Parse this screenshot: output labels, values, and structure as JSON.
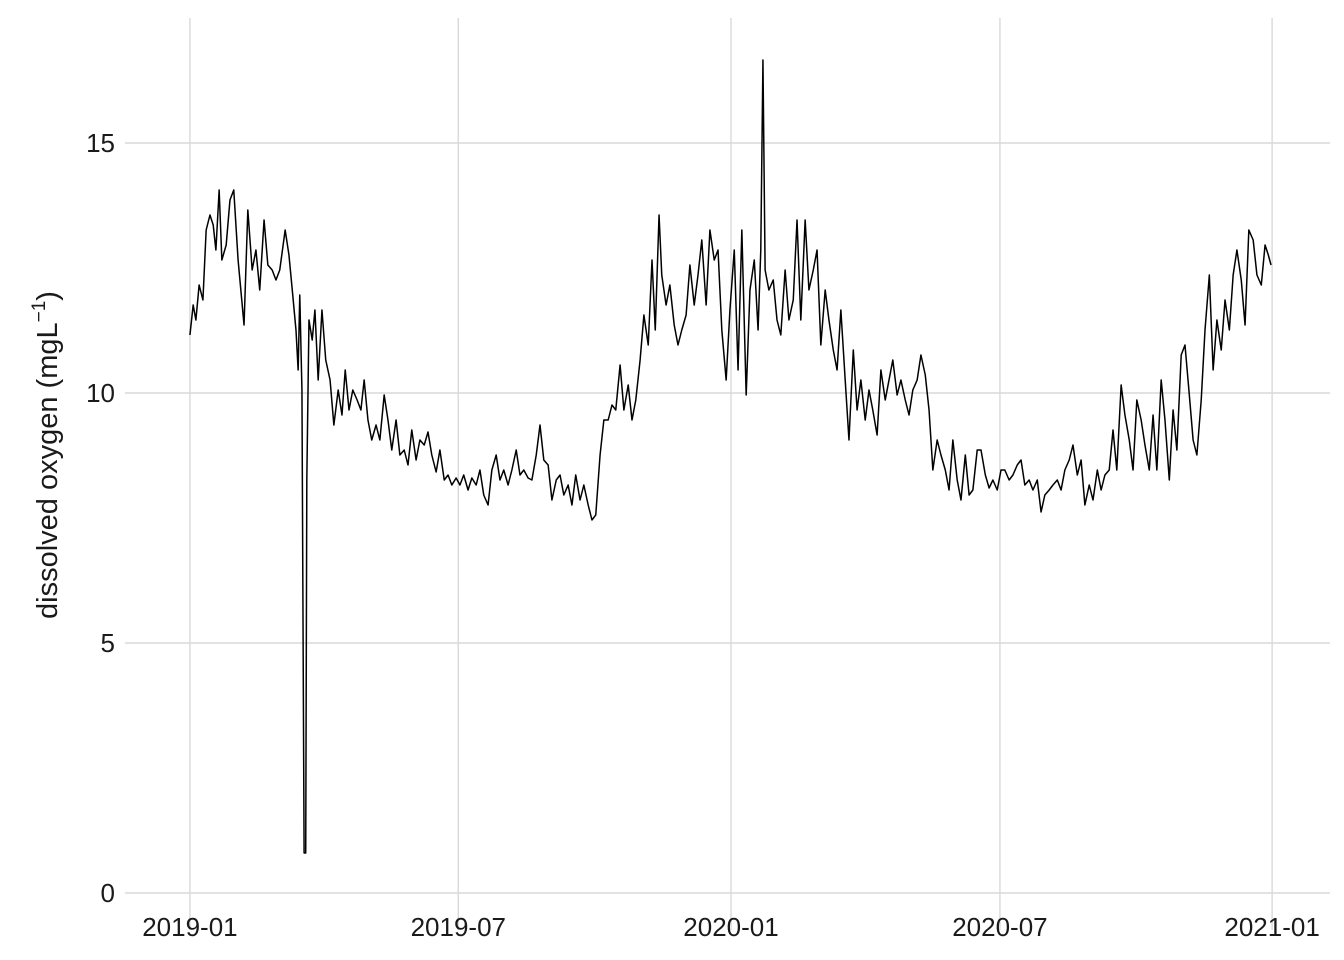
{
  "chart_data": {
    "type": "line",
    "ylabel": {
      "text": "dissolved oxygen (mgL",
      "superscript": "−1",
      "close": ")"
    },
    "xlim": [
      2018.88,
      2021.107
    ],
    "ylim": [
      -0.74,
      17.5
    ],
    "xticks": [
      {
        "value": 2019,
        "label": "2019-01"
      },
      {
        "value": 2019.496,
        "label": "2019-07"
      },
      {
        "value": 2020,
        "label": "2020-01"
      },
      {
        "value": 2020.497,
        "label": "2020-07"
      },
      {
        "value": 2021,
        "label": "2021-01"
      }
    ],
    "yticks": [
      0,
      5,
      10,
      15
    ],
    "grid": true,
    "color": "#000000",
    "x": [
      2019.0,
      2019.006,
      2019.011,
      2019.017,
      2019.024,
      2019.03,
      2019.037,
      2019.043,
      2019.048,
      2019.054,
      2019.059,
      2019.067,
      2019.074,
      2019.081,
      2019.089,
      2019.1,
      2019.107,
      2019.115,
      2019.122,
      2019.129,
      2019.137,
      2019.144,
      2019.152,
      2019.159,
      2019.166,
      2019.176,
      2019.183,
      2019.19,
      2019.196,
      2019.2,
      2019.203,
      2019.207,
      2019.211,
      2019.214,
      2019.216,
      2019.22,
      2019.226,
      2019.231,
      2019.237,
      2019.244,
      2019.251,
      2019.259,
      2019.266,
      2019.274,
      2019.281,
      2019.287,
      2019.294,
      2019.301,
      2019.309,
      2019.316,
      2019.322,
      2019.329,
      2019.336,
      2019.344,
      2019.351,
      2019.359,
      2019.366,
      2019.373,
      2019.381,
      2019.388,
      2019.396,
      2019.403,
      2019.41,
      2019.418,
      2019.425,
      2019.433,
      2019.44,
      2019.447,
      2019.455,
      2019.462,
      2019.47,
      2019.477,
      2019.484,
      2019.492,
      2019.499,
      2019.506,
      2019.514,
      2019.521,
      2019.529,
      2019.536,
      2019.543,
      2019.551,
      2019.558,
      2019.566,
      2019.573,
      2019.58,
      2019.588,
      2019.595,
      2019.603,
      2019.61,
      2019.617,
      2019.625,
      2019.632,
      2019.64,
      2019.647,
      2019.654,
      2019.662,
      2019.669,
      2019.677,
      2019.684,
      2019.691,
      2019.699,
      2019.706,
      2019.713,
      2019.721,
      2019.728,
      2019.736,
      2019.743,
      2019.75,
      2019.758,
      2019.765,
      2019.773,
      2019.78,
      2019.787,
      2019.795,
      2019.802,
      2019.81,
      2019.817,
      2019.824,
      2019.832,
      2019.839,
      2019.847,
      2019.854,
      2019.86,
      2019.867,
      2019.872,
      2019.88,
      2019.887,
      2019.895,
      2019.902,
      2019.909,
      2019.917,
      2019.924,
      2019.932,
      2019.939,
      2019.946,
      2019.954,
      2019.961,
      2019.969,
      2019.976,
      2019.983,
      2019.991,
      2019.998,
      2020.006,
      2020.013,
      2020.02,
      2020.028,
      2020.035,
      2020.043,
      2020.05,
      2020.055,
      2020.059,
      2020.063,
      2020.07,
      2020.078,
      2020.085,
      2020.092,
      2020.1,
      2020.107,
      2020.115,
      2020.122,
      2020.129,
      2020.137,
      2020.144,
      2020.152,
      2020.159,
      2020.166,
      2020.174,
      2020.181,
      2020.189,
      2020.196,
      2020.203,
      2020.211,
      2020.218,
      2020.226,
      2020.233,
      2020.24,
      2020.248,
      2020.255,
      2020.262,
      2020.27,
      2020.277,
      2020.285,
      2020.292,
      2020.299,
      2020.307,
      2020.314,
      2020.322,
      2020.329,
      2020.336,
      2020.344,
      2020.351,
      2020.359,
      2020.366,
      2020.373,
      2020.381,
      2020.388,
      2020.396,
      2020.403,
      2020.41,
      2020.418,
      2020.425,
      2020.433,
      2020.44,
      2020.447,
      2020.455,
      2020.462,
      2020.47,
      2020.477,
      2020.484,
      2020.492,
      2020.499,
      2020.506,
      2020.514,
      2020.521,
      2020.529,
      2020.536,
      2020.543,
      2020.551,
      2020.558,
      2020.566,
      2020.573,
      2020.58,
      2020.588,
      2020.595,
      2020.603,
      2020.61,
      2020.617,
      2020.625,
      2020.632,
      2020.64,
      2020.647,
      2020.654,
      2020.662,
      2020.669,
      2020.677,
      2020.684,
      2020.691,
      2020.699,
      2020.706,
      2020.713,
      2020.721,
      2020.728,
      2020.736,
      2020.743,
      2020.75,
      2020.758,
      2020.765,
      2020.773,
      2020.78,
      2020.787,
      2020.795,
      2020.802,
      2020.81,
      2020.817,
      2020.824,
      2020.832,
      2020.839,
      2020.847,
      2020.854,
      2020.861,
      2020.869,
      2020.876,
      2020.884,
      2020.891,
      2020.898,
      2020.906,
      2020.913,
      2020.921,
      2020.928,
      2020.935,
      2020.943,
      2020.95,
      2020.957,
      2020.965,
      2020.972,
      2020.98,
      2020.987,
      2020.993,
      2020.998
    ],
    "values": [
      11.16,
      11.76,
      11.46,
      12.16,
      11.86,
      13.26,
      13.56,
      13.36,
      12.86,
      14.06,
      12.66,
      12.96,
      13.86,
      14.06,
      12.66,
      11.36,
      13.66,
      12.46,
      12.86,
      12.06,
      13.46,
      12.56,
      12.46,
      12.26,
      12.46,
      13.26,
      12.76,
      11.96,
      11.26,
      10.46,
      11.96,
      10.06,
      0.8,
      0.8,
      8.26,
      11.46,
      11.06,
      11.66,
      10.26,
      11.66,
      10.66,
      10.26,
      9.36,
      10.06,
      9.56,
      10.46,
      9.66,
      10.06,
      9.86,
      9.66,
      10.26,
      9.46,
      9.06,
      9.36,
      9.06,
      9.96,
      9.46,
      8.86,
      9.46,
      8.76,
      8.86,
      8.56,
      9.26,
      8.66,
      9.06,
      8.96,
      9.22,
      8.76,
      8.42,
      8.86,
      8.26,
      8.36,
      8.16,
      8.3,
      8.16,
      8.36,
      8.06,
      8.3,
      8.16,
      8.46,
      7.96,
      7.76,
      8.46,
      8.76,
      8.26,
      8.46,
      8.16,
      8.46,
      8.86,
      8.36,
      8.46,
      8.3,
      8.26,
      8.76,
      9.36,
      8.66,
      8.56,
      7.86,
      8.26,
      8.36,
      7.96,
      8.16,
      7.76,
      8.36,
      7.86,
      8.16,
      7.76,
      7.46,
      7.56,
      8.76,
      9.46,
      9.46,
      9.76,
      9.66,
      10.56,
      9.66,
      10.16,
      9.46,
      9.86,
      10.66,
      11.56,
      10.96,
      12.66,
      11.26,
      13.56,
      12.36,
      11.76,
      12.16,
      11.36,
      10.96,
      11.26,
      11.56,
      12.56,
      11.76,
      12.36,
      13.06,
      11.76,
      13.26,
      12.66,
      12.86,
      11.26,
      10.26,
      11.66,
      12.86,
      10.46,
      13.26,
      9.96,
      12.06,
      12.66,
      11.26,
      12.86,
      16.66,
      12.46,
      12.06,
      12.26,
      11.46,
      11.16,
      12.46,
      11.46,
      11.86,
      13.46,
      11.46,
      13.46,
      12.06,
      12.46,
      12.86,
      10.96,
      12.06,
      11.46,
      10.86,
      10.46,
      11.66,
      10.26,
      9.06,
      10.86,
      9.66,
      10.26,
      9.46,
      10.06,
      9.66,
      9.16,
      10.46,
      9.86,
      10.26,
      10.66,
      9.96,
      10.26,
      9.86,
      9.56,
      10.06,
      10.26,
      10.76,
      10.36,
      9.66,
      8.46,
      9.06,
      8.76,
      8.46,
      8.06,
      9.06,
      8.26,
      7.86,
      8.76,
      7.96,
      8.06,
      8.86,
      8.86,
      8.36,
      8.1,
      8.26,
      8.06,
      8.46,
      8.46,
      8.26,
      8.36,
      8.56,
      8.66,
      8.16,
      8.26,
      8.06,
      8.26,
      7.62,
      7.96,
      8.06,
      8.16,
      8.26,
      8.06,
      8.46,
      8.66,
      8.96,
      8.36,
      8.66,
      7.76,
      8.16,
      7.86,
      8.46,
      8.06,
      8.36,
      8.46,
      9.26,
      8.46,
      10.16,
      9.56,
      9.06,
      8.46,
      9.86,
      9.46,
      8.96,
      8.46,
      9.56,
      8.46,
      10.26,
      9.46,
      8.26,
      9.66,
      8.86,
      10.76,
      10.96,
      9.96,
      9.06,
      8.76,
      9.86,
      11.26,
      12.36,
      10.46,
      11.46,
      10.86,
      11.86,
      11.26,
      12.36,
      12.86,
      12.26,
      11.36,
      13.26,
      13.06,
      12.36,
      12.16,
      12.96,
      12.76,
      12.56
    ]
  }
}
